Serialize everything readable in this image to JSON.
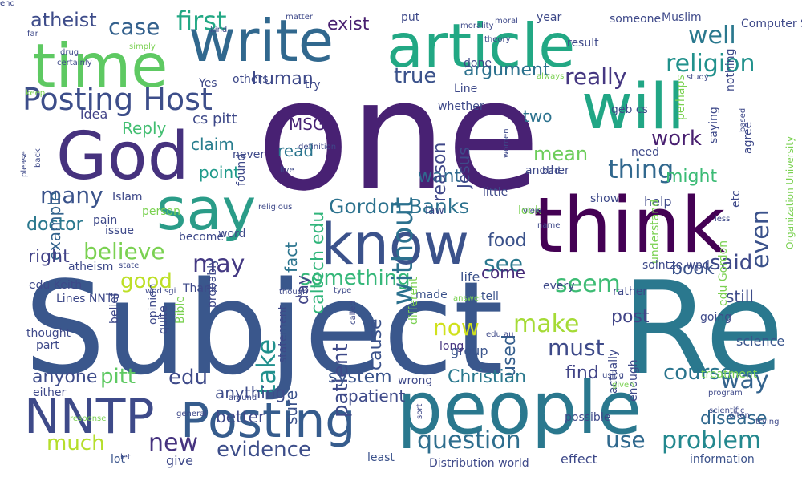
{
  "words": [
    {
      "text": "Subject",
      "color": "#3a578c"
    },
    {
      "text": "Re",
      "color": "#2a788e"
    },
    {
      "text": "one",
      "color": "#482173"
    },
    {
      "text": "people",
      "color": "#2a788e"
    },
    {
      "text": "think",
      "color": "#440154"
    },
    {
      "text": "know",
      "color": "#3b528b"
    },
    {
      "text": "will",
      "color": "#21a685"
    },
    {
      "text": "article",
      "color": "#22a884"
    },
    {
      "text": "time",
      "color": "#5ec962"
    },
    {
      "text": "write",
      "color": "#31688e"
    },
    {
      "text": "God",
      "color": "#46327e"
    },
    {
      "text": "say",
      "color": "#2a9c88"
    },
    {
      "text": "NNTP",
      "color": "#3e4a89"
    },
    {
      "text": "Posting",
      "color": "#365c8d"
    },
    {
      "text": "Posting Host",
      "color": "#3d4e8a"
    },
    {
      "text": "question",
      "color": "#2e6e8e"
    },
    {
      "text": "problem",
      "color": "#23888e"
    },
    {
      "text": "even",
      "color": "#3b528b"
    },
    {
      "text": "Gordon Banks",
      "color": "#2c728e"
    },
    {
      "text": "thing",
      "color": "#31688e"
    },
    {
      "text": "believe",
      "color": "#7ad151"
    },
    {
      "text": "many",
      "color": "#3a538b"
    },
    {
      "text": "may",
      "color": "#443983"
    },
    {
      "text": "well",
      "color": "#2a788e"
    },
    {
      "text": "religion",
      "color": "#21918c"
    },
    {
      "text": "seem",
      "color": "#3dbc74"
    },
    {
      "text": "make",
      "color": "#a5db36"
    },
    {
      "text": "something",
      "color": "#35b779"
    },
    {
      "text": "said",
      "color": "#3e4989"
    },
    {
      "text": "see",
      "color": "#2a788e"
    },
    {
      "text": "use",
      "color": "#30698e"
    },
    {
      "text": "way",
      "color": "#33638d"
    },
    {
      "text": "must",
      "color": "#3e4a89"
    },
    {
      "text": "now",
      "color": "#d0e11c"
    },
    {
      "text": "take",
      "color": "#21908d"
    },
    {
      "text": "evidence",
      "color": "#3d4e8a"
    },
    {
      "text": "new",
      "color": "#46337f"
    },
    {
      "text": "much",
      "color": "#b5de2b"
    },
    {
      "text": "edu",
      "color": "#3e4a89"
    },
    {
      "text": "pitt",
      "color": "#5ec962"
    },
    {
      "text": "good",
      "color": "#bddf26"
    },
    {
      "text": "case",
      "color": "#34618d"
    },
    {
      "text": "first",
      "color": "#22a884"
    },
    {
      "text": "atheist",
      "color": "#3e4c8a"
    },
    {
      "text": "exist",
      "color": "#481f70"
    },
    {
      "text": "really",
      "color": "#453781"
    },
    {
      "text": "human",
      "color": "#3e4989"
    },
    {
      "text": "true",
      "color": "#3b528b"
    },
    {
      "text": "argument",
      "color": "#2c718e"
    },
    {
      "text": "MSG",
      "color": "#482475"
    },
    {
      "text": "read",
      "color": "#2b758e"
    },
    {
      "text": "claim",
      "color": "#287d8e"
    },
    {
      "text": "point",
      "color": "#1f9a8a"
    },
    {
      "text": "work",
      "color": "#481f70"
    },
    {
      "text": "might",
      "color": "#3bbb75"
    },
    {
      "text": "mean",
      "color": "#6ccd5a"
    },
    {
      "text": "want",
      "color": "#30698e"
    },
    {
      "text": "course",
      "color": "#2b758e"
    },
    {
      "text": "disease",
      "color": "#31688e"
    },
    {
      "text": "patient",
      "color": "#3e4a89"
    },
    {
      "text": "Christian",
      "color": "#2a788e"
    },
    {
      "text": "system",
      "color": "#3a548c"
    },
    {
      "text": "anyone",
      "color": "#3e4c8a"
    },
    {
      "text": "doctor",
      "color": "#2a788e"
    },
    {
      "text": "example",
      "color": "#33638d"
    },
    {
      "text": "right",
      "color": "#414287"
    },
    {
      "text": "Reply",
      "color": "#42be71"
    },
    {
      "text": "cs pitt",
      "color": "#3e4989"
    },
    {
      "text": "idea",
      "color": "#414287"
    },
    {
      "text": "food",
      "color": "#3b528b"
    },
    {
      "text": "come",
      "color": "#472c7a"
    },
    {
      "text": "book",
      "color": "#3b528b"
    },
    {
      "text": "still",
      "color": "#3e4c8a"
    },
    {
      "text": "post",
      "color": "#414487"
    },
    {
      "text": "find",
      "color": "#414487"
    },
    {
      "text": "two",
      "color": "#2c728e"
    },
    {
      "text": "Jesus",
      "color": "#3e4a89"
    },
    {
      "text": "reason",
      "color": "#3f4788"
    },
    {
      "text": "without",
      "color": "#2c718e"
    },
    {
      "text": "caltech edu",
      "color": "#31b57b"
    },
    {
      "text": "fact",
      "color": "#2b748e"
    },
    {
      "text": "day",
      "color": "#414487"
    },
    {
      "text": "sure",
      "color": "#3b528b"
    },
    {
      "text": "used",
      "color": "#355e8d"
    },
    {
      "text": "cause",
      "color": "#3b528b"
    },
    {
      "text": "patient",
      "color": "#3e4a89"
    },
    {
      "text": "anything",
      "color": "#3e4c8a"
    },
    {
      "text": "better",
      "color": "#3e4989"
    },
    {
      "text": "lot",
      "color": "#3a548c"
    },
    {
      "text": "give",
      "color": "#3e4989"
    },
    {
      "text": "effect",
      "color": "#3e4989"
    },
    {
      "text": "information",
      "color": "#3b528b"
    },
    {
      "text": "treatment",
      "color": "#7ad151"
    },
    {
      "text": "science",
      "color": "#39558c"
    },
    {
      "text": "group",
      "color": "#3a548c"
    },
    {
      "text": "long",
      "color": "#463480"
    },
    {
      "text": "least",
      "color": "#3b528b"
    },
    {
      "text": "possible",
      "color": "#3e4989"
    },
    {
      "text": "wrong",
      "color": "#3e4989"
    },
    {
      "text": "life",
      "color": "#3b528b"
    },
    {
      "text": "made",
      "color": "#3b528b"
    },
    {
      "text": "tell",
      "color": "#3b528b"
    },
    {
      "text": "every",
      "color": "#3e4989"
    },
    {
      "text": "rather",
      "color": "#3e4989"
    },
    {
      "text": "show",
      "color": "#3e4989"
    },
    {
      "text": "help",
      "color": "#3e4989"
    },
    {
      "text": "need",
      "color": "#3e4989"
    },
    {
      "text": "another",
      "color": "#3e4989"
    },
    {
      "text": "little",
      "color": "#3e4989"
    },
    {
      "text": "look",
      "color": "#7ad151"
    },
    {
      "text": "law",
      "color": "#3e4989"
    },
    {
      "text": "pain",
      "color": "#3e4989"
    },
    {
      "text": "person",
      "color": "#7ad151"
    },
    {
      "text": "Islam",
      "color": "#3e4989"
    },
    {
      "text": "issue",
      "color": "#3e4989"
    },
    {
      "text": "become",
      "color": "#3e4989"
    },
    {
      "text": "word",
      "color": "#3e4989"
    },
    {
      "text": "edu Keith",
      "color": "#3e4989"
    },
    {
      "text": "atheism",
      "color": "#3e4989"
    },
    {
      "text": "Thank",
      "color": "#3e4989"
    },
    {
      "text": "Lines NNTP",
      "color": "#3e4989"
    },
    {
      "text": "thought",
      "color": "#3e4989"
    },
    {
      "text": "part",
      "color": "#3e4989"
    },
    {
      "text": "either",
      "color": "#3e4989"
    },
    {
      "text": "belief",
      "color": "#3e4989"
    },
    {
      "text": "opinion",
      "color": "#3e4989"
    },
    {
      "text": "Bible",
      "color": "#7ad151"
    },
    {
      "text": "probably",
      "color": "#3e4989"
    },
    {
      "text": "quite",
      "color": "#3e4989"
    },
    {
      "text": "statement",
      "color": "#3e4989"
    },
    {
      "text": "different",
      "color": "#7ad151"
    },
    {
      "text": "actually",
      "color": "#3e4989"
    },
    {
      "text": "enough",
      "color": "#3e4989"
    },
    {
      "text": "edu Gordon",
      "color": "#7ad151"
    },
    {
      "text": "understand",
      "color": "#7ad151"
    },
    {
      "text": "agree",
      "color": "#3e4989"
    },
    {
      "text": "saying",
      "color": "#3e4989"
    },
    {
      "text": "perhaps",
      "color": "#7ad151"
    },
    {
      "text": "nothing",
      "color": "#3e4989"
    },
    {
      "text": "geb cs",
      "color": "#3e4989"
    },
    {
      "text": "Line",
      "color": "#3e4989"
    },
    {
      "text": "whether",
      "color": "#3e4989"
    },
    {
      "text": "done",
      "color": "#3e4989"
    },
    {
      "text": "put",
      "color": "#3e4989"
    },
    {
      "text": "result",
      "color": "#3e4989"
    },
    {
      "text": "year",
      "color": "#3e4989"
    },
    {
      "text": "Muslim",
      "color": "#3e4989"
    },
    {
      "text": "someone",
      "color": "#3e4989"
    },
    {
      "text": "others",
      "color": "#3e4989"
    },
    {
      "text": "Yes",
      "color": "#3e4989"
    },
    {
      "text": "try",
      "color": "#3e4989"
    },
    {
      "text": "never",
      "color": "#3e4989"
    },
    {
      "text": "found",
      "color": "#3e4989"
    },
    {
      "text": "going",
      "color": "#3e4989"
    },
    {
      "text": "solntze wpd",
      "color": "#3e4989"
    },
    {
      "text": "etc",
      "color": "#3e4989"
    },
    {
      "text": "bad",
      "color": "#3e4989"
    },
    {
      "text": "Distribution world",
      "color": "#3e4989"
    },
    {
      "text": "Organization University",
      "color": "#7ad151"
    },
    {
      "text": "Computer Science",
      "color": "#3e4989"
    },
    {
      "text": "morality",
      "color": "#3e4989"
    },
    {
      "text": "moral",
      "color": "#3e4989"
    },
    {
      "text": "theory",
      "color": "#3e4989"
    },
    {
      "text": "matter",
      "color": "#3e4989"
    },
    {
      "text": "far",
      "color": "#3e4989"
    },
    {
      "text": "drug",
      "color": "#3e4989"
    },
    {
      "text": "simply",
      "color": "#7ad151"
    },
    {
      "text": "certainly",
      "color": "#3e4989"
    },
    {
      "text": "keep",
      "color": "#7ad151"
    },
    {
      "text": "back",
      "color": "#3e4989"
    },
    {
      "text": "please",
      "color": "#3e4989"
    },
    {
      "text": "always",
      "color": "#7ad151"
    },
    {
      "text": "study",
      "color": "#3e4989"
    },
    {
      "text": "based",
      "color": "#3e4989"
    },
    {
      "text": "women",
      "color": "#3e4989"
    },
    {
      "text": "definition",
      "color": "#3e4989"
    },
    {
      "text": "live",
      "color": "#3e4989"
    },
    {
      "text": "view",
      "color": "#3e4989"
    },
    {
      "text": "name",
      "color": "#3e4989"
    },
    {
      "text": "less",
      "color": "#3e4989"
    },
    {
      "text": "state",
      "color": "#3e4989"
    },
    {
      "text": "religious",
      "color": "#3e4989"
    },
    {
      "text": "wpd sgi",
      "color": "#3e4989"
    },
    {
      "text": "though",
      "color": "#3e4989"
    },
    {
      "text": "type",
      "color": "#3e4989"
    },
    {
      "text": "answer",
      "color": "#7ad151"
    },
    {
      "text": "called",
      "color": "#3e4989"
    },
    {
      "text": "edu au",
      "color": "#3e4989"
    },
    {
      "text": "using",
      "color": "#3e4989"
    },
    {
      "text": "given",
      "color": "#7ad151"
    },
    {
      "text": "response",
      "color": "#7ad151"
    },
    {
      "text": "general",
      "color": "#3e4989"
    },
    {
      "text": "around",
      "color": "#3e4989"
    },
    {
      "text": "sort",
      "color": "#3e4989"
    },
    {
      "text": "let",
      "color": "#3e4989"
    },
    {
      "text": "often",
      "color": "#3e4989"
    },
    {
      "text": "scientific",
      "color": "#3e4989"
    },
    {
      "text": "program",
      "color": "#3e4989"
    },
    {
      "text": "trying",
      "color": "#3e4989"
    },
    {
      "text": "kind",
      "color": "#3e4989"
    },
    {
      "text": "end",
      "color": "#3e4989"
    },
    {
      "text": "e",
      "color": "#3e4989"
    }
  ]
}
